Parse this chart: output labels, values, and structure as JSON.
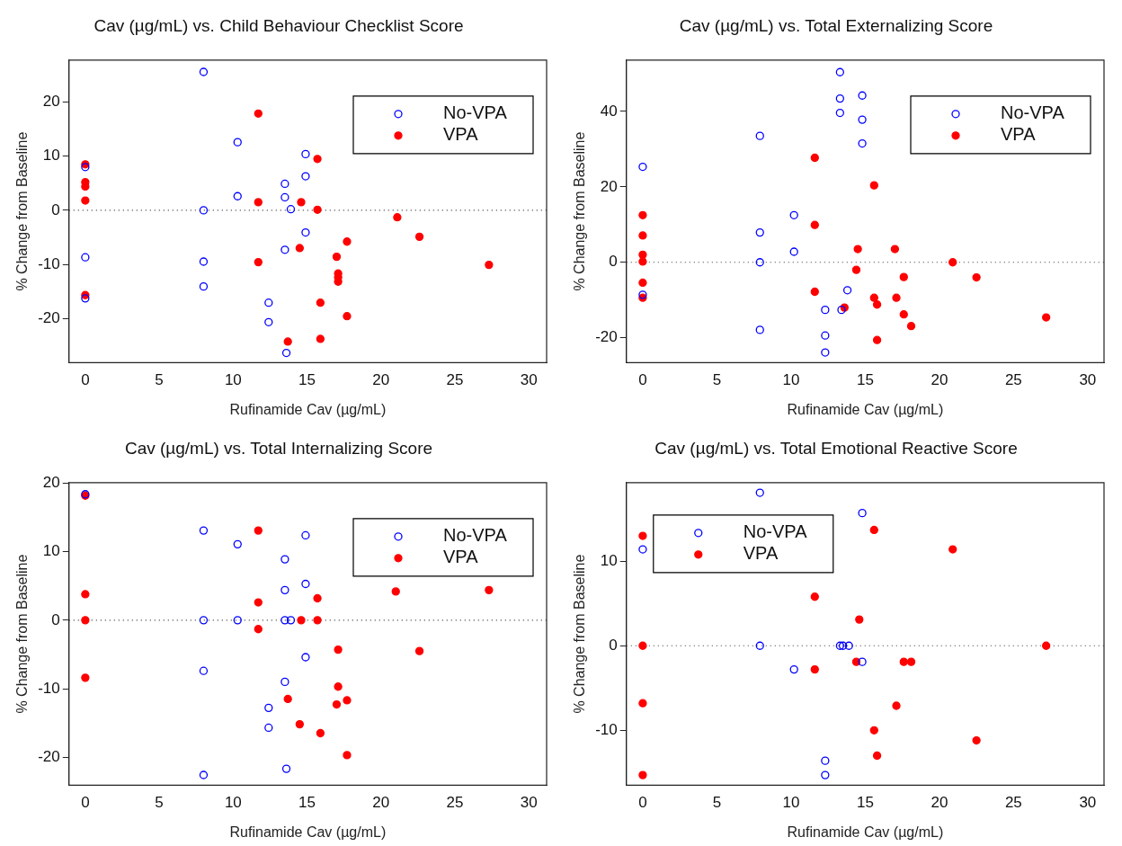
{
  "chart_data": [
    {
      "type": "scatter",
      "title": "Cav (µg/mL) vs. Child Behaviour Checklist Score",
      "xlabel": "Rufinamide Cav (µg/mL)",
      "ylabel": "% Change from Baseline",
      "xlim": [
        -1.1,
        31.2
      ],
      "ylim": [
        -28.2,
        27.8
      ],
      "xticks": [
        0,
        5,
        10,
        15,
        20,
        25,
        30
      ],
      "yticks": [
        -20,
        -10,
        0,
        10,
        20
      ],
      "legend": "top right",
      "marker": "circle",
      "ref_lines": [
        {
          "axis": "y",
          "value": 0,
          "line_style": "dotted"
        }
      ],
      "series": [
        {
          "name": "No-VPA",
          "color": "#0000ff",
          "x": [
            0,
            0,
            0,
            8,
            8,
            8,
            8,
            10.3,
            10.3,
            13.5,
            13.5,
            13.9,
            13.5,
            14.9,
            14.9,
            14.9,
            12.4,
            12.4,
            13.6
          ],
          "values": [
            8,
            -8.7,
            -16.3,
            25.6,
            0,
            -9.5,
            -14.1,
            12.6,
            2.6,
            4.9,
            2.4,
            0.2,
            -7.3,
            10.4,
            6.3,
            -4.1,
            -17.1,
            -20.7,
            -26.4
          ]
        },
        {
          "name": "VPA",
          "color": "#ff0000",
          "x": [
            0,
            0,
            0,
            0,
            0,
            11.7,
            11.7,
            11.7,
            14.6,
            14.5,
            15.7,
            15.7,
            15.9,
            15.9,
            13.7,
            17.0,
            17.1,
            17.1,
            17.1,
            17.7,
            17.7,
            21.1,
            22.6,
            27.3
          ],
          "values": [
            8.5,
            5.2,
            4.4,
            1.8,
            -15.7,
            17.9,
            1.5,
            -9.6,
            1.5,
            -7.0,
            9.5,
            0.1,
            -17.1,
            -23.8,
            -24.3,
            -8.6,
            -11.7,
            -12.4,
            -13.2,
            -5.8,
            -19.6,
            -1.3,
            -4.9,
            -10.1
          ]
        }
      ]
    },
    {
      "type": "scatter",
      "title": "Cav (µg/mL) vs. Total Externalizing Score",
      "xlabel": "Rufinamide Cav (µg/mL)",
      "ylabel": "% Change from Baseline",
      "xlim": [
        -1.1,
        31.1
      ],
      "ylim": [
        -26.6,
        53.6
      ],
      "xticks": [
        0,
        5,
        10,
        15,
        20,
        25,
        30
      ],
      "yticks": [
        -20,
        0,
        20,
        40
      ],
      "legend": "top right",
      "marker": "circle",
      "ref_lines": [
        {
          "axis": "y",
          "value": 0,
          "line_style": "dotted"
        }
      ],
      "series": [
        {
          "name": "No-VPA",
          "color": "#0000ff",
          "x": [
            0,
            0,
            7.9,
            7.9,
            7.9,
            7.9,
            10.2,
            10.2,
            13.3,
            13.3,
            13.3,
            14.8,
            14.8,
            14.8,
            13.8,
            12.3,
            13.4,
            12.3,
            12.3
          ],
          "values": [
            25.3,
            -8.6,
            33.5,
            7.9,
            0,
            -17.9,
            12.5,
            2.8,
            50.4,
            43.4,
            39.6,
            44.2,
            37.8,
            31.5,
            -7.4,
            -12.6,
            -12.6,
            -19.4,
            -23.9
          ]
        },
        {
          "name": "VPA",
          "color": "#ff0000",
          "x": [
            0,
            0,
            0,
            0,
            0,
            0,
            11.6,
            11.6,
            11.6,
            15.6,
            14.5,
            14.4,
            13.6,
            15.6,
            15.8,
            15.8,
            17.0,
            17.1,
            17.6,
            17.6,
            18.1,
            20.9,
            22.5,
            27.2
          ],
          "values": [
            12.5,
            7.1,
            2.0,
            0.2,
            -5.4,
            -9.4,
            27.7,
            9.9,
            -7.8,
            20.4,
            3.5,
            -2.0,
            -12.0,
            -9.4,
            -11.2,
            -20.6,
            3.5,
            -9.4,
            -3.9,
            -13.8,
            -16.9,
            0,
            -4.0,
            -14.6
          ]
        }
      ]
    },
    {
      "type": "scatter",
      "title": "Cav (µg/mL) vs. Total Internalizing Score",
      "xlabel": "Rufinamide Cav (µg/mL)",
      "ylabel": "% Change from Baseline",
      "xlim": [
        -1.1,
        31.2
      ],
      "ylim": [
        -24.1,
        20.1
      ],
      "xticks": [
        0,
        5,
        10,
        15,
        20,
        25,
        30
      ],
      "yticks": [
        -20,
        -10,
        0,
        10,
        20
      ],
      "legend": "top right",
      "marker": "circle",
      "ref_lines": [
        {
          "axis": "y",
          "value": 0,
          "line_style": "dotted"
        }
      ],
      "series": [
        {
          "name": "No-VPA",
          "color": "#0000ff",
          "x": [
            0,
            8,
            8,
            8,
            8,
            10.3,
            10.3,
            13.5,
            13.5,
            13.5,
            13.9,
            13.5,
            14.9,
            14.9,
            14.9,
            12.4,
            12.4,
            13.6
          ],
          "values": [
            18.4,
            13.1,
            0,
            -7.4,
            -22.6,
            11.1,
            0,
            8.9,
            4.4,
            0,
            0,
            -9.0,
            12.4,
            5.3,
            -5.4,
            -12.8,
            -15.7,
            -21.7
          ]
        },
        {
          "name": "VPA",
          "color": "#ff0000",
          "x": [
            0,
            0,
            0,
            0,
            11.7,
            11.7,
            11.7,
            14.6,
            15.7,
            15.7,
            13.7,
            14.5,
            15.9,
            17.1,
            17.1,
            17.0,
            17.7,
            17.7,
            21.0,
            22.6,
            27.3
          ],
          "values": [
            18.2,
            3.8,
            0,
            -8.4,
            13.1,
            2.6,
            -1.3,
            0,
            3.2,
            0,
            -11.5,
            -15.2,
            -16.5,
            -4.3,
            -9.7,
            -12.3,
            -11.7,
            -19.7,
            4.2,
            -4.5,
            4.4
          ]
        }
      ]
    },
    {
      "type": "scatter",
      "title": "Cav (µg/mL) vs. Total Emotional Reactive Score",
      "xlabel": "Rufinamide Cav (µg/mL)",
      "ylabel": "% Change from Baseline",
      "xlim": [
        -1.1,
        31.1
      ],
      "ylim": [
        -16.5,
        19.3
      ],
      "xticks": [
        0,
        5,
        10,
        15,
        20,
        25,
        30
      ],
      "yticks": [
        -10,
        0,
        10
      ],
      "legend": "top left",
      "marker": "circle",
      "ref_lines": [
        {
          "axis": "y",
          "value": 0,
          "line_style": "dotted"
        }
      ],
      "series": [
        {
          "name": "No-VPA",
          "color": "#0000ff",
          "x": [
            0,
            7.9,
            7.9,
            10.2,
            13.3,
            13.5,
            13.9,
            14.8,
            14.8,
            12.3,
            12.3
          ],
          "values": [
            11.4,
            18.1,
            0,
            -2.8,
            0,
            0,
            0,
            15.7,
            -1.9,
            -13.6,
            -15.3
          ]
        },
        {
          "name": "VPA",
          "color": "#ff0000",
          "x": [
            0,
            0,
            0,
            0,
            11.6,
            11.6,
            14.6,
            14.4,
            15.6,
            15.6,
            15.8,
            17.1,
            17.6,
            18.1,
            20.9,
            22.5,
            27.2
          ],
          "values": [
            13.0,
            0,
            -6.8,
            -15.3,
            5.8,
            -2.8,
            3.1,
            -1.9,
            13.7,
            -10.0,
            -13.0,
            -7.1,
            -1.9,
            -1.9,
            11.4,
            -11.2,
            0
          ]
        }
      ]
    }
  ]
}
